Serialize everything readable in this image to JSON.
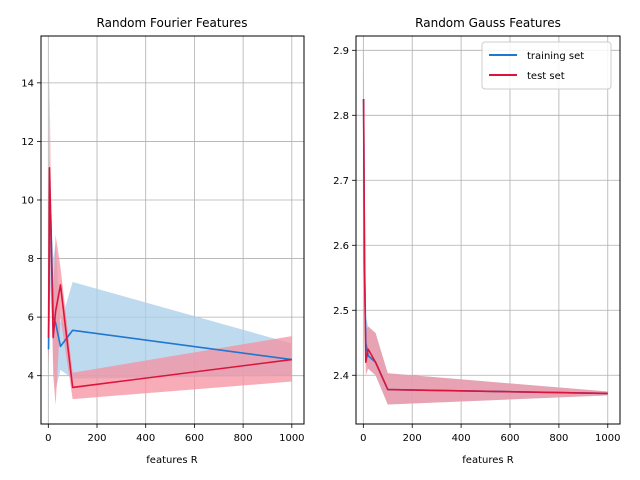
{
  "chart_data": [
    {
      "type": "line",
      "title": "Random Fourier Features",
      "xlabel": "features R",
      "ylabel": "",
      "xlim": [
        -30,
        1050
      ],
      "ylim": [
        2.35,
        15.6
      ],
      "xticks": [
        0,
        200,
        400,
        600,
        800,
        1000
      ],
      "yticks": [
        4,
        6,
        8,
        10,
        12,
        14
      ],
      "grid": true,
      "series": [
        {
          "name": "training set",
          "color": "#1f77d0",
          "band_color": "#a8cdea",
          "x": [
            1,
            5,
            10,
            20,
            30,
            50,
            100,
            1000
          ],
          "y": [
            4.9,
            9.0,
            9.5,
            6.0,
            5.8,
            5.0,
            5.55,
            4.55
          ],
          "lower": [
            4.5,
            5.5,
            7.0,
            4.5,
            3.5,
            4.2,
            3.9,
            4.0
          ],
          "upper": [
            5.3,
            11.0,
            9.6,
            8.0,
            8.5,
            5.8,
            7.2,
            5.1
          ]
        },
        {
          "name": "test set",
          "color": "#dc143c",
          "band_color": "#f4909f",
          "x": [
            1,
            5,
            10,
            20,
            30,
            50,
            100,
            1000
          ],
          "y": [
            5.3,
            11.1,
            9.3,
            5.3,
            6.2,
            7.1,
            3.6,
            4.55
          ],
          "lower": [
            4.3,
            5.5,
            8.5,
            4.0,
            3.0,
            6.0,
            3.2,
            3.8
          ],
          "upper": [
            6.3,
            14.5,
            10.5,
            6.8,
            8.8,
            7.7,
            4.1,
            5.35
          ]
        }
      ]
    },
    {
      "type": "line",
      "title": "Random Gauss Features",
      "xlabel": "features R",
      "ylabel": "",
      "xlim": [
        -30,
        1050
      ],
      "ylim": [
        2.325,
        2.922
      ],
      "xticks": [
        0,
        200,
        400,
        600,
        800,
        1000
      ],
      "yticks": [
        2.4,
        2.5,
        2.6,
        2.7,
        2.8,
        2.9
      ],
      "grid": true,
      "legend": "top-right",
      "series": [
        {
          "name": "training set",
          "color": "#1f77d0",
          "band_color": "#a8cdea",
          "x": [
            1,
            5,
            10,
            20,
            50,
            100,
            1000
          ],
          "y": [
            2.825,
            2.575,
            2.45,
            2.43,
            2.42,
            2.378,
            2.372
          ],
          "lower": [
            2.7,
            2.5,
            2.42,
            2.41,
            2.4,
            2.355,
            2.369
          ],
          "upper": [
            2.9,
            2.65,
            2.49,
            2.475,
            2.465,
            2.403,
            2.375
          ]
        },
        {
          "name": "test set",
          "color": "#dc143c",
          "band_color": "#f4909f",
          "x": [
            1,
            5,
            10,
            20,
            50,
            100,
            1000
          ],
          "y": [
            2.825,
            2.56,
            2.42,
            2.44,
            2.42,
            2.378,
            2.372
          ],
          "lower": [
            2.7,
            2.5,
            2.4,
            2.41,
            2.4,
            2.355,
            2.369
          ],
          "upper": [
            2.9,
            2.62,
            2.47,
            2.475,
            2.465,
            2.403,
            2.375
          ]
        }
      ]
    }
  ]
}
